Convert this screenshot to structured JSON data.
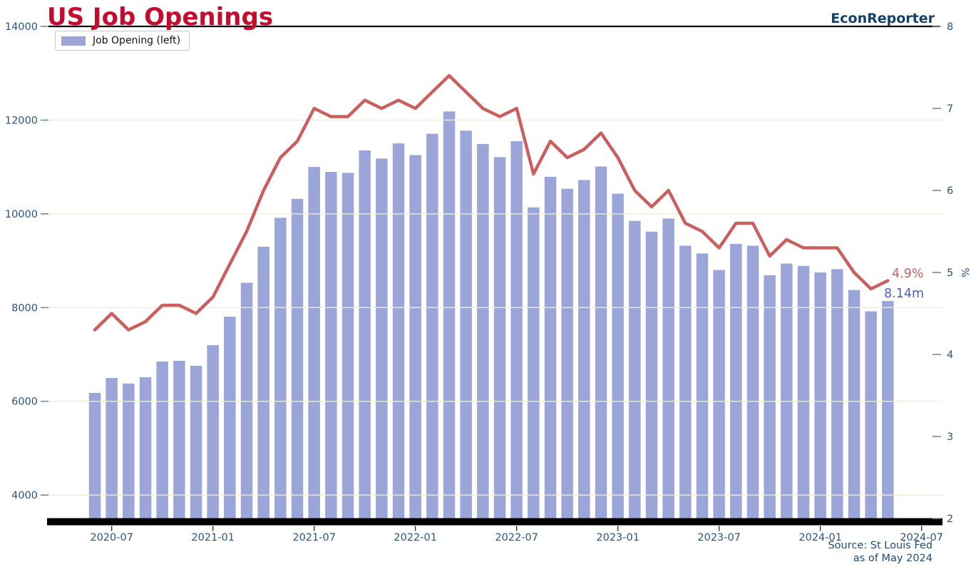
{
  "header": {
    "title": "US Job Openings",
    "brand": "EconReporter"
  },
  "legend": {
    "items": [
      {
        "label": "Job Opening (left)",
        "swatch_color": "#9ba5d8"
      }
    ]
  },
  "annotations": {
    "rate_label": "4.9%",
    "openings_label": "8.14m"
  },
  "source": {
    "line1": "Source: St Louis Fed",
    "line2": "as of May 2024"
  },
  "colors": {
    "bar": "#9ba5d8",
    "line": "#c9605f",
    "title_red": "#c60c2e",
    "brand_navy": "#12416b",
    "tick_text": "#2a5480",
    "tick_dash": "#7b8794",
    "annotation_blue": "#4d5cc5",
    "gridline": "#f3ecd9",
    "spine": "#000000",
    "source_text": "#1d4e76"
  },
  "chart_data": {
    "type": "bar",
    "title": "US Job Openings",
    "x": [
      "2020-06",
      "2020-07",
      "2020-08",
      "2020-09",
      "2020-10",
      "2020-11",
      "2020-12",
      "2021-01",
      "2021-02",
      "2021-03",
      "2021-04",
      "2021-05",
      "2021-06",
      "2021-07",
      "2021-08",
      "2021-09",
      "2021-10",
      "2021-11",
      "2021-12",
      "2022-01",
      "2022-02",
      "2022-03",
      "2022-04",
      "2022-05",
      "2022-06",
      "2022-07",
      "2022-08",
      "2022-09",
      "2022-10",
      "2022-11",
      "2022-12",
      "2023-01",
      "2023-02",
      "2023-03",
      "2023-04",
      "2023-05",
      "2023-06",
      "2023-07",
      "2023-08",
      "2023-09",
      "2023-10",
      "2023-11",
      "2023-12",
      "2024-01",
      "2024-02",
      "2024-03",
      "2024-04",
      "2024-05"
    ],
    "series": [
      {
        "name": "Job Opening (left)",
        "type": "bar",
        "axis": "left",
        "values": [
          6180,
          6500,
          6380,
          6515,
          6850,
          6865,
          6760,
          7200,
          7805,
          8530,
          9300,
          9915,
          10320,
          11000,
          10895,
          10875,
          11355,
          11180,
          11505,
          11255,
          11710,
          12185,
          11775,
          11490,
          11210,
          11550,
          10140,
          10790,
          10535,
          10720,
          11010,
          10430,
          9850,
          9620,
          9900,
          9320,
          9155,
          8800,
          9360,
          9320,
          8690,
          8940,
          8890,
          8750,
          8820,
          8375,
          7920,
          8140
        ]
      },
      {
        "name": "rate_line",
        "type": "line",
        "axis": "right",
        "values": [
          4.3,
          4.5,
          4.3,
          4.4,
          4.6,
          4.6,
          4.5,
          4.7,
          5.1,
          5.5,
          6.0,
          6.4,
          6.6,
          7.0,
          6.9,
          6.9,
          7.1,
          7.0,
          7.1,
          7.0,
          7.2,
          7.4,
          7.2,
          7.0,
          6.9,
          7.0,
          6.2,
          6.6,
          6.4,
          6.5,
          6.7,
          6.4,
          6.0,
          5.8,
          6.0,
          5.6,
          5.5,
          5.3,
          5.6,
          5.6,
          5.2,
          5.4,
          5.3,
          5.3,
          5.3,
          5.0,
          4.8,
          4.9
        ]
      }
    ],
    "left_axis": {
      "ticks": [
        14000,
        12000,
        10000,
        8000,
        6000,
        4000
      ],
      "range": [
        3500,
        14000
      ]
    },
    "right_axis": {
      "ticks": [
        8,
        7,
        6,
        5,
        4,
        3,
        2
      ],
      "range": [
        2,
        8
      ],
      "label": "%"
    },
    "x_tick_labels": [
      "2020-07",
      "2021-01",
      "2021-07",
      "2022-01",
      "2022-07",
      "2023-01",
      "2023-07",
      "2024-01",
      "2024-07"
    ],
    "grid_values_left": [
      12000,
      10000,
      8000,
      6000,
      4000
    ],
    "legend_position": "upper-left",
    "last_values": {
      "openings": 8140,
      "rate_percent": 4.9
    }
  }
}
